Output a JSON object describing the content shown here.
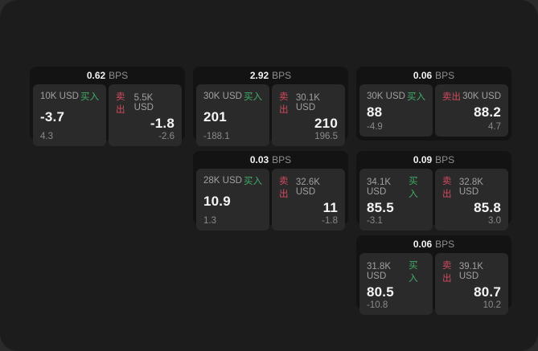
{
  "colors": {
    "backdrop": "#2b2b2b",
    "surface": "#1c1c1c",
    "card_bg": "#131313",
    "panel_bg": "#2a2a2a",
    "buy_green": "#3fae68",
    "sell_red": "#d14b5f",
    "text_primary": "#f5f5f5",
    "text_muted": "#8f8f8f"
  },
  "cards": [
    {
      "bps": "0.62",
      "unit": "BPS",
      "buy": {
        "amount": "10K USD",
        "side": "买入",
        "price": "-3.7",
        "delta": "4.3"
      },
      "sell": {
        "side": "卖出",
        "amount": "5.5K USD",
        "price": "-1.8",
        "delta": "-2.6"
      }
    },
    {
      "bps": "2.92",
      "unit": "BPS",
      "buy": {
        "amount": "30K USD",
        "side": "买入",
        "price": "201",
        "delta": "-188.1"
      },
      "sell": {
        "side": "卖出",
        "amount": "30.1K USD",
        "price": "210",
        "delta": "196.5"
      }
    },
    {
      "bps": "0.06",
      "unit": "BPS",
      "buy": {
        "amount": "30K USD",
        "side": "买入",
        "price": "88",
        "delta": "-4.9"
      },
      "sell": {
        "side": "卖出",
        "amount": "30K USD",
        "price": "88.2",
        "delta": "4.7"
      }
    },
    {
      "bps": "0.03",
      "unit": "BPS",
      "buy": {
        "amount": "28K USD",
        "side": "买入",
        "price": "10.9",
        "delta": "1.3"
      },
      "sell": {
        "side": "卖出",
        "amount": "32.6K USD",
        "price": "11",
        "delta": "-1.8"
      }
    },
    {
      "bps": "0.09",
      "unit": "BPS",
      "buy": {
        "amount": "34.1K USD",
        "side": "买入",
        "price": "85.5",
        "delta": "-3.1"
      },
      "sell": {
        "side": "卖出",
        "amount": "32.8K USD",
        "price": "85.8",
        "delta": "3.0"
      }
    },
    {
      "bps": "0.06",
      "unit": "BPS",
      "buy": {
        "amount": "31.8K USD",
        "side": "买入",
        "price": "80.5",
        "delta": "-10.8"
      },
      "sell": {
        "side": "卖出",
        "amount": "39.1K USD",
        "price": "80.7",
        "delta": "10.2"
      }
    }
  ]
}
